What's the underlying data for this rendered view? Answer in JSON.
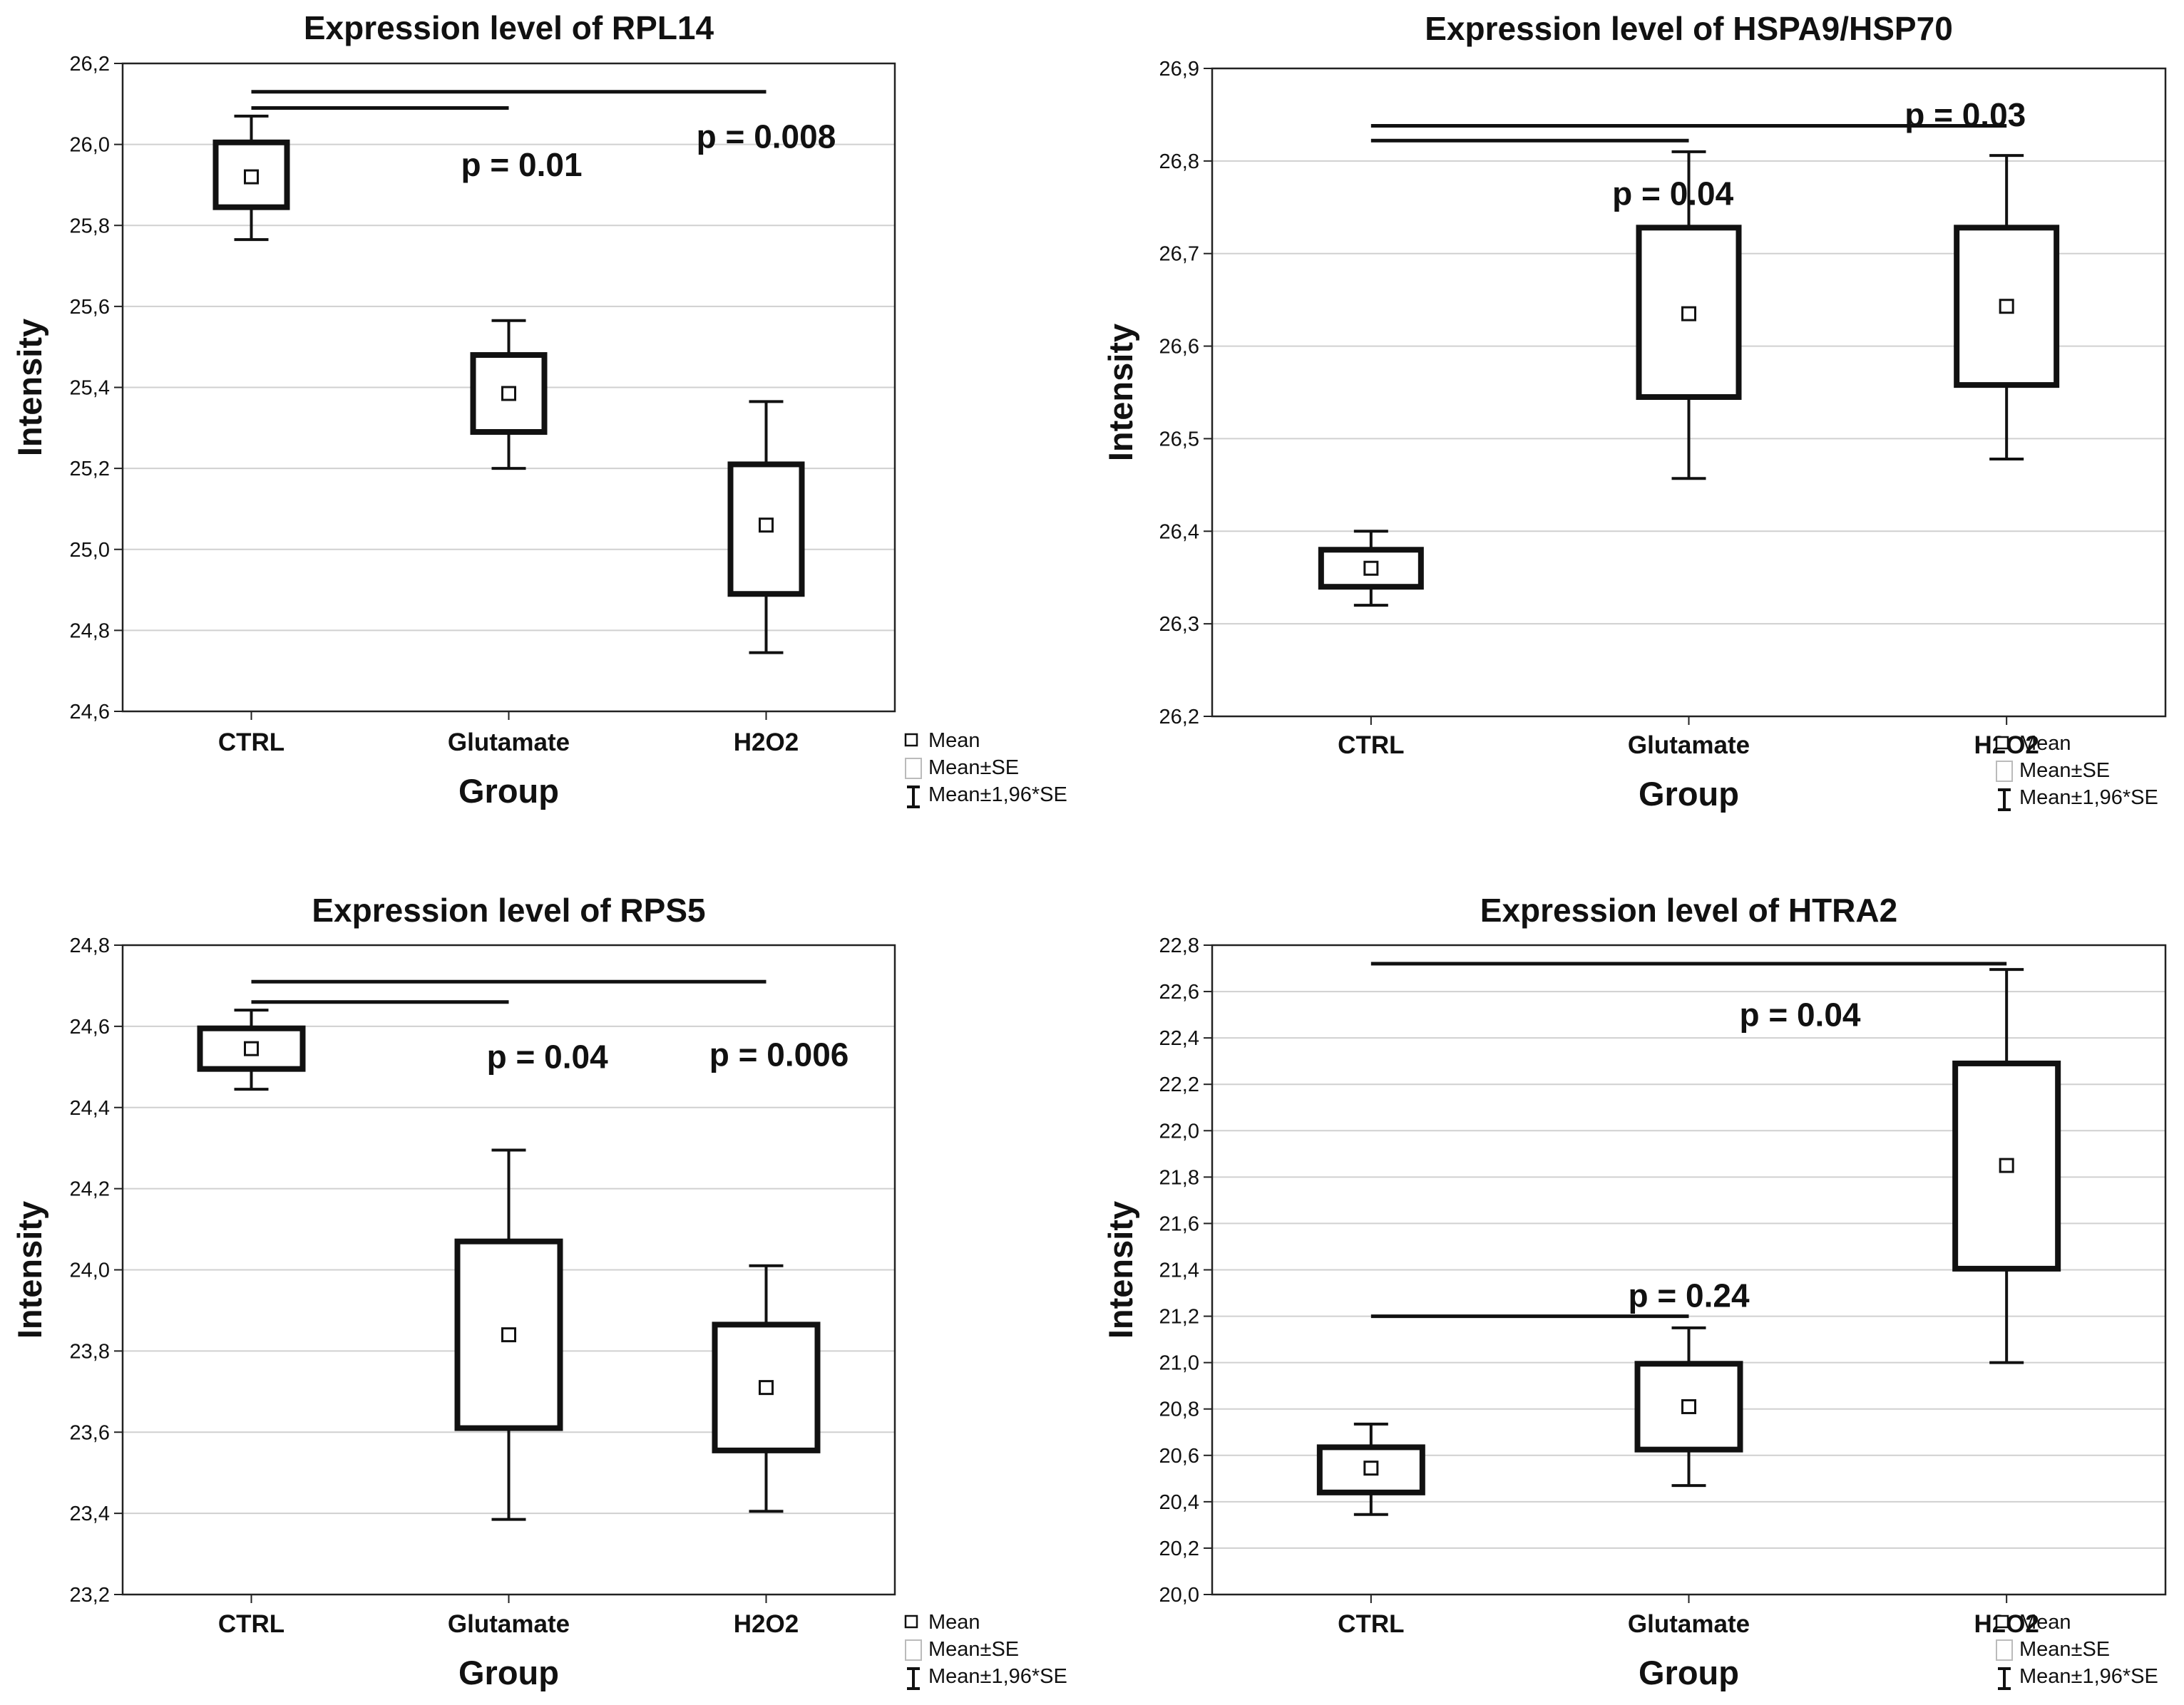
{
  "chart_data": [
    {
      "type": "box",
      "title": "Expression level of RPL14",
      "xlabel": "Group",
      "ylabel": "Intensity",
      "categories": [
        "CTRL",
        "Glutamate",
        "H2O2"
      ],
      "ylim": [
        24.6,
        26.2
      ],
      "yticks": [
        "24,6",
        "24,8",
        "25,0",
        "25,2",
        "25,4",
        "25,6",
        "25,8",
        "26,0",
        "26,2"
      ],
      "grid": true,
      "series": [
        {
          "category": "CTRL",
          "mean": 25.92,
          "se_low": 25.845,
          "se_high": 26.005,
          "ci_low": 25.765,
          "ci_high": 26.07
        },
        {
          "category": "Glutamate",
          "mean": 25.385,
          "se_low": 25.29,
          "se_high": 25.48,
          "ci_low": 25.2,
          "ci_high": 25.565
        },
        {
          "category": "H2O2",
          "mean": 25.06,
          "se_low": 24.89,
          "se_high": 25.21,
          "ci_low": 24.745,
          "ci_high": 25.365
        }
      ],
      "annotations": [
        {
          "text": "p = 0.01",
          "from": "CTRL",
          "to": "Glutamate",
          "line_y": 26.09,
          "text_y": 25.95,
          "text_x": 1.55
        },
        {
          "text": "p = 0.008",
          "from": "CTRL",
          "to": "H2O2",
          "line_y": 26.13,
          "text_y": 26.02,
          "text_x": 2.5
        }
      ],
      "legend": {
        "position": "right-bottom",
        "items": [
          "Mean",
          "Mean±SE",
          "Mean±1,96*SE"
        ]
      }
    },
    {
      "type": "box",
      "title": "Expression level of HSPA9/HSP70",
      "xlabel": "Group",
      "ylabel": "Intensity",
      "categories": [
        "CTRL",
        "Glutamate",
        "H2O2"
      ],
      "ylim": [
        26.2,
        26.9
      ],
      "yticks": [
        "26,2",
        "26,3",
        "26,4",
        "26,5",
        "26,6",
        "26,7",
        "26,8",
        "26,9"
      ],
      "grid": true,
      "series": [
        {
          "category": "CTRL",
          "mean": 26.36,
          "se_low": 26.34,
          "se_high": 26.38,
          "ci_low": 26.32,
          "ci_high": 26.4
        },
        {
          "category": "Glutamate",
          "mean": 26.635,
          "se_low": 26.545,
          "se_high": 26.728,
          "ci_low": 26.457,
          "ci_high": 26.81
        },
        {
          "category": "H2O2",
          "mean": 26.643,
          "se_low": 26.558,
          "se_high": 26.728,
          "ci_low": 26.478,
          "ci_high": 26.806
        }
      ],
      "annotations": [
        {
          "text": "p = 0.04",
          "from": "CTRL",
          "to": "Glutamate",
          "line_y": 26.822,
          "text_y": 26.765,
          "text_x": 1.45
        },
        {
          "text": "p = 0.03",
          "from": "CTRL",
          "to": "H2O2",
          "line_y": 26.838,
          "text_y": 26.85,
          "text_x": 2.37
        }
      ],
      "legend": {
        "position": "right-bottom",
        "items": [
          "Mean",
          "Mean±SE",
          "Mean±1,96*SE"
        ]
      }
    },
    {
      "type": "box",
      "title": "Expression level of RPS5",
      "xlabel": "Group",
      "ylabel": "Intensity",
      "categories": [
        "CTRL",
        "Glutamate",
        "H2O2"
      ],
      "ylim": [
        23.2,
        24.8
      ],
      "yticks": [
        "23,2",
        "23,4",
        "23,6",
        "23,8",
        "24,0",
        "24,2",
        "24,4",
        "24,6",
        "24,8"
      ],
      "grid": true,
      "series": [
        {
          "category": "CTRL",
          "mean": 24.545,
          "se_low": 24.495,
          "se_high": 24.595,
          "ci_low": 24.445,
          "ci_high": 24.64
        },
        {
          "category": "Glutamate",
          "mean": 23.84,
          "se_low": 23.61,
          "se_high": 24.07,
          "ci_low": 23.385,
          "ci_high": 24.295
        },
        {
          "category": "H2O2",
          "mean": 23.71,
          "se_low": 23.555,
          "se_high": 23.865,
          "ci_low": 23.405,
          "ci_high": 24.01
        }
      ],
      "annotations": [
        {
          "text": "p = 0.04",
          "from": "CTRL",
          "to": "Glutamate",
          "line_y": 24.66,
          "text_y": 24.525,
          "text_x": 1.65
        },
        {
          "text": "p = 0.006",
          "from": "CTRL",
          "to": "H2O2",
          "line_y": 24.71,
          "text_y": 24.53,
          "text_x": 2.55
        }
      ],
      "legend": {
        "position": "right-bottom",
        "items": [
          "Mean",
          "Mean±SE",
          "Mean±1,96*SE"
        ]
      }
    },
    {
      "type": "box",
      "title": "Expression level of HTRA2",
      "xlabel": "Group",
      "ylabel": "Intensity",
      "categories": [
        "CTRL",
        "Glutamate",
        "H2O2"
      ],
      "ylim": [
        20.0,
        22.8
      ],
      "yticks": [
        "20,0",
        "20,2",
        "20,4",
        "20,6",
        "20,8",
        "21,0",
        "21,2",
        "21,4",
        "21,6",
        "21,8",
        "22,0",
        "22,2",
        "22,4",
        "22,6",
        "22,8"
      ],
      "grid": true,
      "series": [
        {
          "category": "CTRL",
          "mean": 20.545,
          "se_low": 20.44,
          "se_high": 20.635,
          "ci_low": 20.345,
          "ci_high": 20.735
        },
        {
          "category": "Glutamate",
          "mean": 20.81,
          "se_low": 20.625,
          "se_high": 20.995,
          "ci_low": 20.47,
          "ci_high": 21.15
        },
        {
          "category": "H2O2",
          "mean": 21.85,
          "se_low": 21.405,
          "se_high": 22.29,
          "ci_low": 21.0,
          "ci_high": 22.695
        }
      ],
      "annotations": [
        {
          "text": "p = 0.04",
          "from": "CTRL",
          "to": "H2O2",
          "line_y": 22.72,
          "text_y": 22.5,
          "text_x": 1.85
        },
        {
          "text": "p = 0.24",
          "from": "CTRL",
          "to": "Glutamate",
          "line_y": 21.2,
          "text_y": 21.29,
          "text_x": 1.5
        }
      ],
      "legend": {
        "position": "right-bottom",
        "items": [
          "Mean",
          "Mean±SE",
          "Mean±1,96*SE"
        ]
      }
    }
  ]
}
